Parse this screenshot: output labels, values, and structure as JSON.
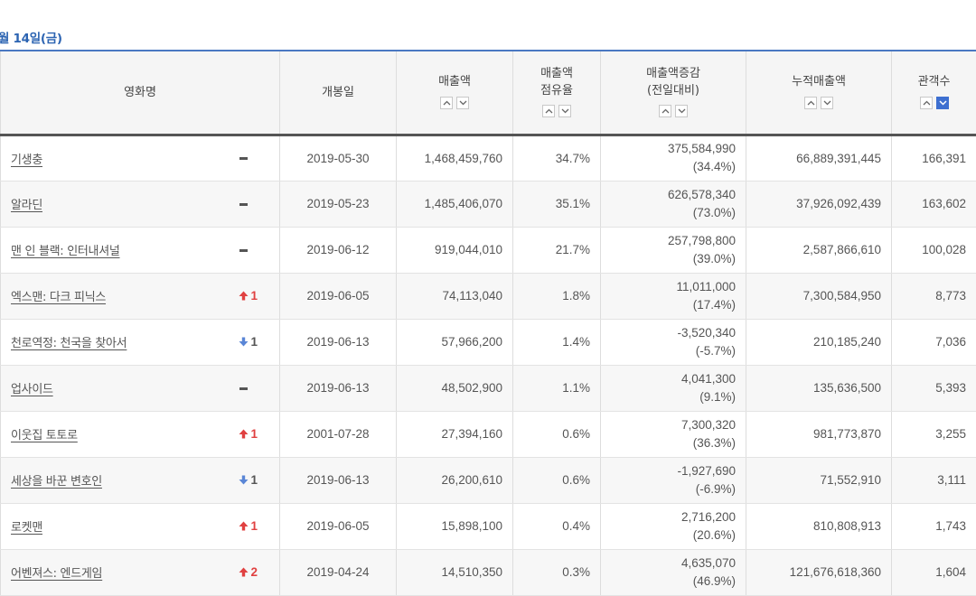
{
  "date_title": "월 14일(금)",
  "headers": {
    "name": "영화명",
    "release": "개봉일",
    "sales": "매출액",
    "share_line1": "매출액",
    "share_line2": "점유율",
    "change_line1": "매출액증감",
    "change_line2": "(전일대비)",
    "cumulative": "누적매출액",
    "audience": "관객수"
  },
  "icons": {
    "sort_up": "sort-up-icon",
    "sort_down": "sort-down-icon",
    "rank_up": "rank-up-arrow-icon",
    "rank_down": "rank-down-arrow-icon",
    "rank_same": "rank-unchanged-dash-icon"
  },
  "colors": {
    "accent": "#2c64b2",
    "rank_up": "#e04141",
    "rank_down": "#5a86d6",
    "active_sort": "#3d6fd0"
  },
  "rows": [
    {
      "name": "기생충",
      "rank_change": "same",
      "rank_value": "",
      "release": "2019-05-30",
      "sales": "1,468,459,760",
      "share": "34.7%",
      "change": "375,584,990",
      "change_pct": "(34.4%)",
      "cumulative": "66,889,391,445",
      "audience": "166,391"
    },
    {
      "name": "알라딘",
      "rank_change": "same",
      "rank_value": "",
      "release": "2019-05-23",
      "sales": "1,485,406,070",
      "share": "35.1%",
      "change": "626,578,340",
      "change_pct": "(73.0%)",
      "cumulative": "37,926,092,439",
      "audience": "163,602"
    },
    {
      "name": "맨 인 블랙: 인터내셔널",
      "rank_change": "same",
      "rank_value": "",
      "release": "2019-06-12",
      "sales": "919,044,010",
      "share": "21.7%",
      "change": "257,798,800",
      "change_pct": "(39.0%)",
      "cumulative": "2,587,866,610",
      "audience": "100,028"
    },
    {
      "name": "엑스맨: 다크 피닉스",
      "rank_change": "up",
      "rank_value": "1",
      "release": "2019-06-05",
      "sales": "74,113,040",
      "share": "1.8%",
      "change": "11,011,000",
      "change_pct": "(17.4%)",
      "cumulative": "7,300,584,950",
      "audience": "8,773"
    },
    {
      "name": "천로역정: 천국을 찾아서",
      "rank_change": "down",
      "rank_value": "1",
      "release": "2019-06-13",
      "sales": "57,966,200",
      "share": "1.4%",
      "change": "-3,520,340",
      "change_pct": "(-5.7%)",
      "cumulative": "210,185,240",
      "audience": "7,036"
    },
    {
      "name": "업사이드",
      "rank_change": "same",
      "rank_value": "",
      "release": "2019-06-13",
      "sales": "48,502,900",
      "share": "1.1%",
      "change": "4,041,300",
      "change_pct": "(9.1%)",
      "cumulative": "135,636,500",
      "audience": "5,393"
    },
    {
      "name": "이웃집 토토로",
      "rank_change": "up",
      "rank_value": "1",
      "release": "2001-07-28",
      "sales": "27,394,160",
      "share": "0.6%",
      "change": "7,300,320",
      "change_pct": "(36.3%)",
      "cumulative": "981,773,870",
      "audience": "3,255"
    },
    {
      "name": "세상을 바꾼 변호인",
      "rank_change": "down",
      "rank_value": "1",
      "release": "2019-06-13",
      "sales": "26,200,610",
      "share": "0.6%",
      "change": "-1,927,690",
      "change_pct": "(-6.9%)",
      "cumulative": "71,552,910",
      "audience": "3,111"
    },
    {
      "name": "로켓맨",
      "rank_change": "up",
      "rank_value": "1",
      "release": "2019-06-05",
      "sales": "15,898,100",
      "share": "0.4%",
      "change": "2,716,200",
      "change_pct": "(20.6%)",
      "cumulative": "810,808,913",
      "audience": "1,743"
    },
    {
      "name": "어벤져스: 엔드게임",
      "rank_change": "up",
      "rank_value": "2",
      "release": "2019-04-24",
      "sales": "14,510,350",
      "share": "0.3%",
      "change": "4,635,070",
      "change_pct": "(46.9%)",
      "cumulative": "121,676,618,360",
      "audience": "1,604"
    }
  ]
}
